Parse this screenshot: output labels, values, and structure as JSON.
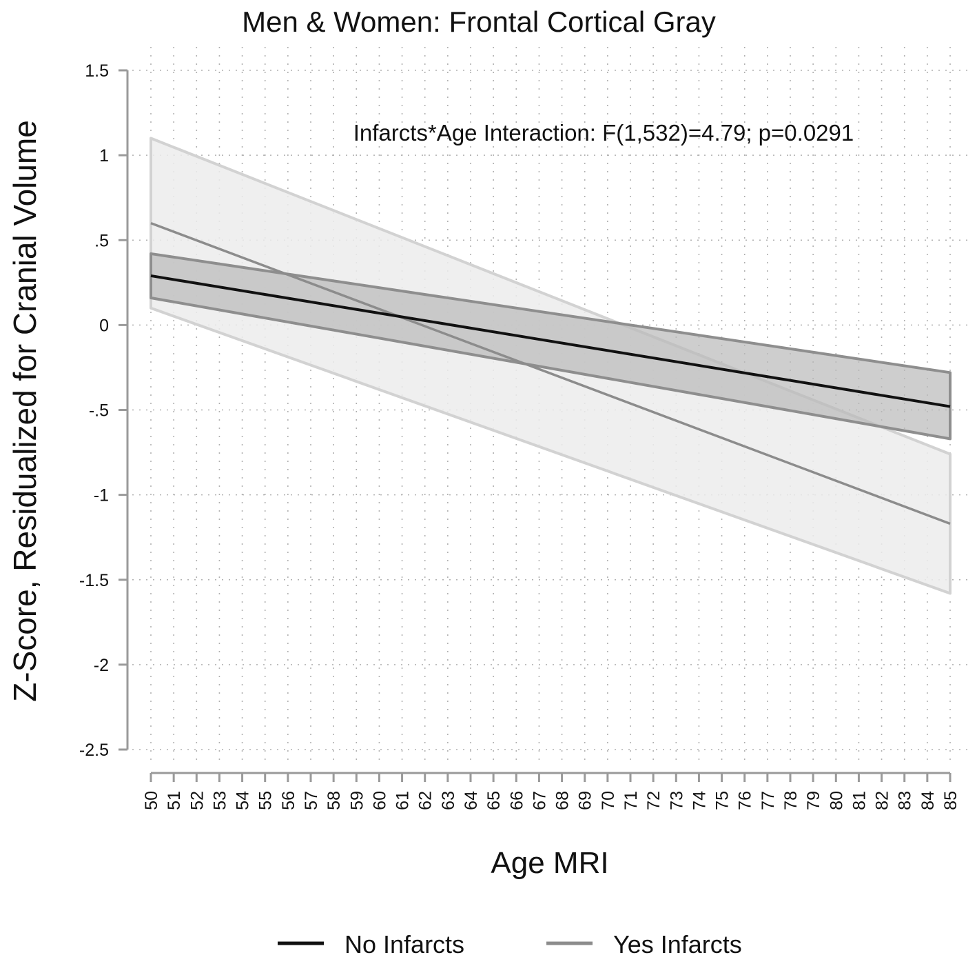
{
  "chart_data": {
    "type": "line",
    "title": "Men & Women: Frontal Cortical Gray",
    "xlabel": "Age MRI",
    "ylabel": "Z-Score, Residualized for Cranial Volume",
    "xlim": [
      50,
      85
    ],
    "ylim": [
      -2.5,
      1.5
    ],
    "x_ticks": [
      "50",
      "51",
      "52",
      "53",
      "54",
      "55",
      "56",
      "57",
      "58",
      "59",
      "60",
      "61",
      "62",
      "63",
      "64",
      "65",
      "66",
      "67",
      "68",
      "69",
      "70",
      "71",
      "72",
      "73",
      "74",
      "75",
      "76",
      "77",
      "78",
      "79",
      "80",
      "81",
      "82",
      "83",
      "84",
      "85"
    ],
    "y_ticks": [
      {
        "value": 1.5,
        "label": "1.5"
      },
      {
        "value": 1,
        "label": "1"
      },
      {
        "value": 0.5,
        "label": ".5"
      },
      {
        "value": 0,
        "label": "0"
      },
      {
        "value": -0.5,
        "label": "-.5"
      },
      {
        "value": -1,
        "label": "-1"
      },
      {
        "value": -1.5,
        "label": "-1.5"
      },
      {
        "value": -2,
        "label": "-2"
      },
      {
        "value": -2.5,
        "label": "-2.5"
      }
    ],
    "grid": true,
    "annotation": "Infarcts*Age Interaction: F(1,532)=4.79; p=0.0291",
    "series": [
      {
        "name": "No Infarcts",
        "color": "#111111",
        "band_color": "#b9b9b9",
        "band_edge_color": "#8e8e8e",
        "x": [
          50,
          85
        ],
        "fit": [
          0.29,
          -0.48
        ],
        "ci_upper": [
          0.42,
          -0.28
        ],
        "ci_lower": [
          0.16,
          -0.67
        ]
      },
      {
        "name": "Yes Infarcts",
        "color": "#8c8c8c",
        "band_color": "#ececec",
        "band_edge_color": "#d2d2d2",
        "x": [
          50,
          85
        ],
        "fit": [
          0.6,
          -1.17
        ],
        "ci_upper": [
          1.1,
          -0.76
        ],
        "ci_lower": [
          0.1,
          -1.58
        ]
      }
    ],
    "legend": {
      "position": "bottom",
      "entries": [
        "No Infarcts",
        "Yes Infarcts"
      ]
    }
  }
}
